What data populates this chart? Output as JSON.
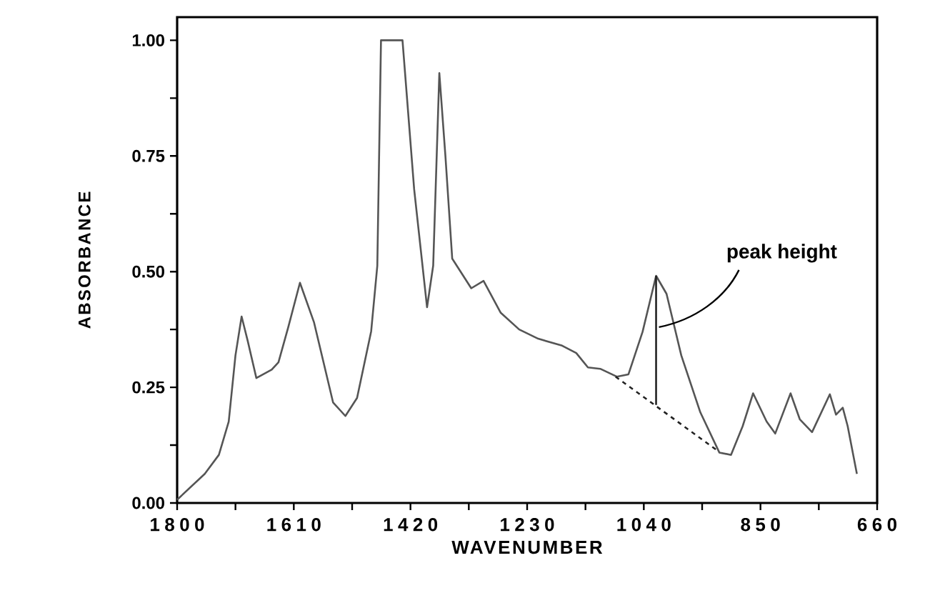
{
  "chart_data": {
    "type": "line",
    "xlabel": "WAVENUMBER",
    "ylabel": "ABSORBANCE",
    "xlim": [
      1800,
      660
    ],
    "ylim": [
      0,
      1.05
    ],
    "xticks": [
      1800,
      {
        "value": 1705,
        "label": null
      },
      1610,
      {
        "value": 1515,
        "label": null
      },
      1420,
      {
        "value": 1325,
        "label": null
      },
      1230,
      {
        "value": 1135,
        "label": null
      },
      1040,
      {
        "value": 945,
        "label": null
      },
      850,
      {
        "value": 755,
        "label": null
      },
      660
    ],
    "yticks": [
      {
        "value": 0,
        "label": "0.00"
      },
      {
        "value": 0.125,
        "label": null
      },
      {
        "value": 0.25,
        "label": "0.25"
      },
      {
        "value": 0.375,
        "label": null
      },
      {
        "value": 0.5,
        "label": "0.50"
      },
      {
        "value": 0.625,
        "label": null
      },
      {
        "value": 0.75,
        "label": "0.75"
      },
      {
        "value": 0.875,
        "label": null
      },
      {
        "value": 1,
        "label": "1.00"
      }
    ],
    "grid": false,
    "marker": "none",
    "series": [
      {
        "color": "#555555",
        "line_style": "solid",
        "x": [
          1800,
          1755,
          1732,
          1716,
          1705,
          1695,
          1685,
          1671,
          1646,
          1635,
          1619,
          1600,
          1577,
          1546,
          1526,
          1507,
          1484,
          1474,
          1468,
          1433,
          1414,
          1393,
          1383,
          1373,
          1363,
          1352,
          1321,
          1301,
          1273,
          1243,
          1212,
          1173,
          1150,
          1131,
          1111,
          1084,
          1065,
          1042,
          1020,
          1003,
          979,
          948,
          917,
          898,
          879,
          862,
          840,
          826,
          801,
          786,
          766,
          737,
          727,
          716,
          708,
          693
        ],
        "values": [
          0.007,
          0.063,
          0.104,
          0.176,
          0.319,
          0.403,
          0.35,
          0.27,
          0.288,
          0.304,
          0.38,
          0.476,
          0.39,
          0.217,
          0.188,
          0.227,
          0.371,
          0.513,
          1.0,
          1.0,
          0.678,
          0.423,
          0.513,
          0.929,
          0.748,
          0.528,
          0.464,
          0.48,
          0.411,
          0.375,
          0.355,
          0.34,
          0.324,
          0.293,
          0.29,
          0.273,
          0.278,
          0.37,
          0.491,
          0.452,
          0.319,
          0.196,
          0.109,
          0.104,
          0.166,
          0.237,
          0.176,
          0.15,
          0.237,
          0.181,
          0.153,
          0.235,
          0.191,
          0.206,
          0.166,
          0.063
        ]
      },
      {
        "color": "#222222",
        "line_style": "dashed",
        "x": [
          1086,
          921
        ],
        "values": [
          0.273,
          0.114
        ]
      },
      {
        "color": "#222222",
        "line_style": "solid",
        "x": [
          1020,
          1020
        ],
        "values": [
          0.212,
          0.491
        ]
      }
    ],
    "annotations": [
      {
        "text": "peak height",
        "x": 1020,
        "y": 0.38
      }
    ]
  }
}
